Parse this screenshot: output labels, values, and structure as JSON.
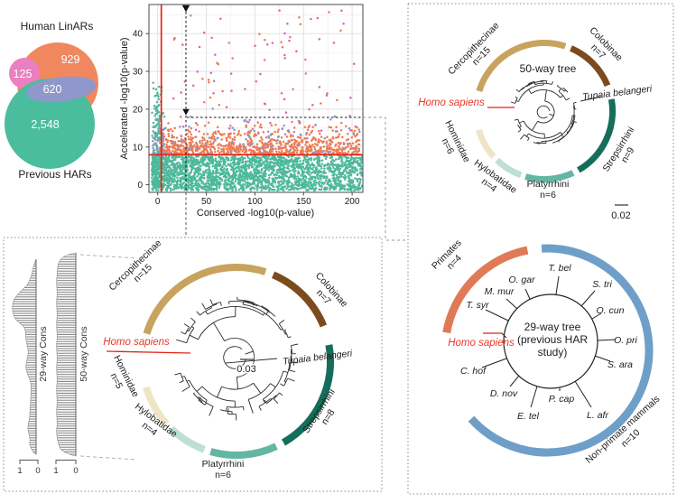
{
  "chart_data": [
    {
      "type": "scatter",
      "title": "",
      "xlabel": "Conserved -log10(p-value)",
      "ylabel": "Accelerated -log10(p-value)",
      "xticks": [
        "0",
        "50",
        "100",
        "150",
        "200"
      ],
      "yticks": [
        "0",
        "10",
        "20",
        "30",
        "40"
      ],
      "xlim": [
        -9,
        211
      ],
      "ylim": [
        -2,
        47.7
      ],
      "grid": true,
      "legend": "none",
      "significance_lines": {
        "color": "#e42313",
        "vertical_x": 3.7,
        "horizontal_y": 7.7
      },
      "crosshair": {
        "x": 29,
        "y": 17.8,
        "style": "black dashed with down-triangle markers"
      },
      "series": [
        {
          "name": "teal points",
          "color": "#4db99b",
          "count": 2600,
          "x_range": [
            -6,
            207
          ],
          "y_range": [
            -1.8,
            27
          ]
        },
        {
          "name": "orange points",
          "color": "#ee7a52",
          "count": 900,
          "x_range": [
            2,
            207
          ],
          "y_range": [
            7.7,
            47
          ]
        },
        {
          "name": "purple points",
          "color": "#8d95c9",
          "count": 135,
          "x_range": [
            -5,
            207
          ],
          "y_range": [
            8,
            40
          ]
        },
        {
          "name": "pink points",
          "color": "#df61ae",
          "count": 58,
          "x_range": [
            12,
            207
          ],
          "y_range": [
            14,
            47
          ]
        }
      ]
    },
    {
      "type": "venn",
      "title_top": "Human LinARs",
      "title_bottom": "Previous HARs",
      "regions": [
        {
          "name": "human-linars-only",
          "value": "929",
          "color": "#f0875f"
        },
        {
          "name": "pink-region",
          "value": "125",
          "color": "#ea80c0"
        },
        {
          "name": "overlap",
          "value": "620",
          "color": "#9097cb"
        },
        {
          "name": "previous-hars-only",
          "value": "2,548",
          "color": "#49bd9e"
        }
      ]
    },
    {
      "type": "area",
      "name": "conservation tracks",
      "orientation": "vertical",
      "tracks": [
        {
          "label": "29-way Cons",
          "axis_max": "1",
          "axis_min": "0"
        },
        {
          "label": "50-way Cons",
          "axis_max": "1",
          "axis_min": "0"
        }
      ]
    }
  ],
  "tree50_top": {
    "center_label": "50-way tree",
    "scale_label": "0.02",
    "homo_label": "Homo sapiens",
    "outgroup_label": "Tupaia belangeri",
    "highlight_color": "#e42313",
    "clades": [
      {
        "label": "Cercopithecinae",
        "n": "n=15",
        "color": "#c7a35e",
        "a0": -73,
        "a1": 18
      },
      {
        "label": "Colobinae",
        "n": "n=7",
        "color": "#7c4b1d",
        "a0": 23,
        "a1": 68
      },
      {
        "label": "Strepsirrhini",
        "n": "n=9",
        "color": "#156e5b",
        "a0": 80,
        "a1": 150
      },
      {
        "label": "Platyrrhini",
        "n": "n=6",
        "color": "#63b6a4",
        "a0": 155,
        "a1": 196
      },
      {
        "label": "Hylobatidae",
        "n": "n=4",
        "color": "#bedfd5",
        "a0": 200,
        "a1": 224
      },
      {
        "label": "Hominidae",
        "n": "n=6",
        "color": "#efe5c6",
        "a0": 228,
        "a1": 254
      }
    ]
  },
  "tree50_bottom": {
    "scale_label": "0.03",
    "homo_label": "Homo sapiens",
    "outgroup_label": "Tupaia belangeri",
    "highlight_color": "#e42313",
    "clades": [
      {
        "label": "Cercopithecinae",
        "n": "n=15",
        "color": "#c7a35e",
        "a0": -73,
        "a1": 18
      },
      {
        "label": "Colobinae",
        "n": "n=7",
        "color": "#7c4b1d",
        "a0": 23,
        "a1": 68
      },
      {
        "label": "Strepsirrhini",
        "n": "n=8",
        "color": "#156e5b",
        "a0": 80,
        "a1": 150
      },
      {
        "label": "Platyrrhini",
        "n": "n=6",
        "color": "#63b6a4",
        "a0": 155,
        "a1": 196
      },
      {
        "label": "Hylobatidae",
        "n": "n=4",
        "color": "#bedfd5",
        "a0": 200,
        "a1": 224
      },
      {
        "label": "Hominidae",
        "n": "n=5",
        "color": "#efe5c6",
        "a0": 228,
        "a1": 254
      }
    ]
  },
  "tree29": {
    "center_lines": [
      "29-way tree",
      "(previous HAR",
      "study)"
    ],
    "homo_label": "Homo sapiens",
    "species": [
      "T. bel",
      "S. tri",
      "O. cun",
      "O. pri",
      "S. ara",
      "L. afr",
      "P. cap",
      "E. tel",
      "D. nov",
      "C. hof",
      "T. syr",
      "M. mur",
      "O. gar"
    ],
    "groups": [
      {
        "label": "Primates",
        "n": "n=4",
        "color": "#e07a56",
        "a0": -80,
        "a1": -11
      },
      {
        "label": "Non-primate mammals",
        "n": "n=10",
        "color": "#6f9fc8",
        "a0": -3,
        "a1": 228
      }
    ]
  }
}
